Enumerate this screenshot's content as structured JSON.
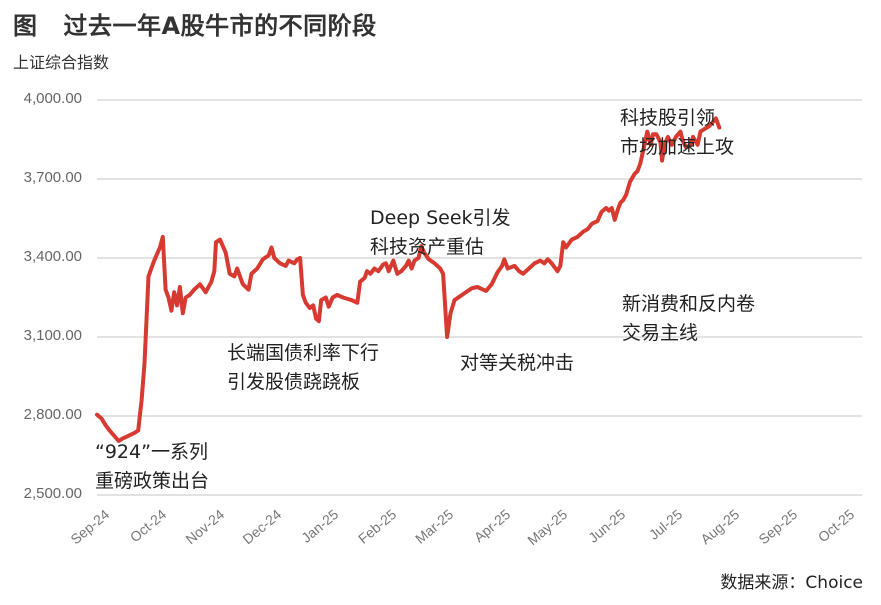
{
  "title": {
    "fig_label": "图",
    "text": "过去一年A股牛市的不同阶段"
  },
  "subtitle": "上证综合指数",
  "source": "数据来源：Choice",
  "colors": {
    "line": "#d63a30",
    "grid": "#d9d9d9",
    "axis_text": "#666666"
  },
  "annotations": [
    {
      "id": "policy",
      "lines": [
        "“924”一系列",
        "重磅政策出台"
      ]
    },
    {
      "id": "bond",
      "lines": [
        "长端国债利率下行",
        "引发股债跷跷板"
      ]
    },
    {
      "id": "deepseek",
      "lines": [
        "Deep Seek引发",
        "科技资产重估"
      ]
    },
    {
      "id": "tariff",
      "lines": [
        "对等关税冲击"
      ]
    },
    {
      "id": "consumption",
      "lines": [
        "新消费和反内卷",
        "交易主线"
      ]
    },
    {
      "id": "tech",
      "lines": [
        "科技股引领",
        "市场加速上攻"
      ]
    }
  ],
  "chart_data": {
    "type": "line",
    "title": "过去一年A股牛市的不同阶段",
    "ylabel": "上证综合指数",
    "xlabel": "",
    "ylim": [
      2500,
      4000
    ],
    "yticks": [
      "2,500.00",
      "2,800.00",
      "3,100.00",
      "3,400.00",
      "3,700.00",
      "4,000.00"
    ],
    "xticks": [
      "Sep-24",
      "Oct-24",
      "Nov-24",
      "Dec-24",
      "Jan-25",
      "Feb-25",
      "Mar-25",
      "Apr-25",
      "May-25",
      "Jun-25",
      "Jul-25",
      "Aug-25",
      "Sep-25",
      "Oct-25"
    ],
    "grid": true,
    "legend": "none",
    "series": [
      {
        "name": "上证综合指数",
        "points": [
          [
            0.0,
            2805
          ],
          [
            0.08,
            2790
          ],
          [
            0.15,
            2765
          ],
          [
            0.22,
            2745
          ],
          [
            0.3,
            2725
          ],
          [
            0.38,
            2705
          ],
          [
            0.45,
            2715
          ],
          [
            0.55,
            2725
          ],
          [
            0.65,
            2735
          ],
          [
            0.72,
            2745
          ],
          [
            0.78,
            2860
          ],
          [
            0.83,
            3000
          ],
          [
            0.9,
            3330
          ],
          [
            0.95,
            3360
          ],
          [
            1.0,
            3390
          ],
          [
            1.1,
            3440
          ],
          [
            1.15,
            3480
          ],
          [
            1.2,
            3280
          ],
          [
            1.25,
            3250
          ],
          [
            1.3,
            3200
          ],
          [
            1.35,
            3270
          ],
          [
            1.4,
            3220
          ],
          [
            1.45,
            3290
          ],
          [
            1.5,
            3190
          ],
          [
            1.55,
            3250
          ],
          [
            1.62,
            3260
          ],
          [
            1.7,
            3280
          ],
          [
            1.8,
            3300
          ],
          [
            1.9,
            3270
          ],
          [
            2.0,
            3310
          ],
          [
            2.05,
            3350
          ],
          [
            2.08,
            3460
          ],
          [
            2.15,
            3470
          ],
          [
            2.25,
            3420
          ],
          [
            2.32,
            3340
          ],
          [
            2.4,
            3330
          ],
          [
            2.45,
            3360
          ],
          [
            2.55,
            3300
          ],
          [
            2.65,
            3280
          ],
          [
            2.7,
            3340
          ],
          [
            2.8,
            3360
          ],
          [
            2.9,
            3395
          ],
          [
            3.0,
            3410
          ],
          [
            3.05,
            3440
          ],
          [
            3.1,
            3400
          ],
          [
            3.2,
            3380
          ],
          [
            3.3,
            3370
          ],
          [
            3.35,
            3390
          ],
          [
            3.45,
            3380
          ],
          [
            3.5,
            3395
          ],
          [
            3.55,
            3400
          ],
          [
            3.6,
            3260
          ],
          [
            3.65,
            3230
          ],
          [
            3.72,
            3210
          ],
          [
            3.78,
            3220
          ],
          [
            3.83,
            3170
          ],
          [
            3.88,
            3160
          ],
          [
            3.92,
            3240
          ],
          [
            4.0,
            3250
          ],
          [
            4.05,
            3215
          ],
          [
            4.12,
            3250
          ],
          [
            4.2,
            3260
          ],
          [
            4.3,
            3250
          ],
          [
            4.45,
            3240
          ],
          [
            4.55,
            3230
          ],
          [
            4.6,
            3310
          ],
          [
            4.68,
            3325
          ],
          [
            4.72,
            3350
          ],
          [
            4.78,
            3340
          ],
          [
            4.85,
            3360
          ],
          [
            4.92,
            3350
          ],
          [
            5.0,
            3375
          ],
          [
            5.05,
            3380
          ],
          [
            5.1,
            3350
          ],
          [
            5.18,
            3390
          ],
          [
            5.25,
            3340
          ],
          [
            5.32,
            3350
          ],
          [
            5.4,
            3370
          ],
          [
            5.45,
            3390
          ],
          [
            5.5,
            3360
          ],
          [
            5.55,
            3390
          ],
          [
            5.62,
            3400
          ],
          [
            5.67,
            3445
          ],
          [
            5.72,
            3420
          ],
          [
            5.8,
            3395
          ],
          [
            5.9,
            3380
          ],
          [
            6.0,
            3360
          ],
          [
            6.05,
            3340
          ],
          [
            6.12,
            3100
          ],
          [
            6.18,
            3190
          ],
          [
            6.25,
            3240
          ],
          [
            6.35,
            3255
          ],
          [
            6.45,
            3270
          ],
          [
            6.55,
            3285
          ],
          [
            6.65,
            3290
          ],
          [
            6.8,
            3275
          ],
          [
            6.9,
            3300
          ],
          [
            7.0,
            3345
          ],
          [
            7.08,
            3370
          ],
          [
            7.12,
            3395
          ],
          [
            7.18,
            3360
          ],
          [
            7.3,
            3370
          ],
          [
            7.38,
            3350
          ],
          [
            7.45,
            3340
          ],
          [
            7.55,
            3360
          ],
          [
            7.65,
            3380
          ],
          [
            7.75,
            3390
          ],
          [
            7.82,
            3380
          ],
          [
            7.88,
            3395
          ],
          [
            7.95,
            3380
          ],
          [
            8.05,
            3350
          ],
          [
            8.1,
            3370
          ],
          [
            8.15,
            3460
          ],
          [
            8.2,
            3440
          ],
          [
            8.3,
            3470
          ],
          [
            8.4,
            3480
          ],
          [
            8.5,
            3500
          ],
          [
            8.58,
            3510
          ],
          [
            8.65,
            3530
          ],
          [
            8.75,
            3540
          ],
          [
            8.82,
            3575
          ],
          [
            8.9,
            3590
          ],
          [
            8.95,
            3580
          ],
          [
            9.0,
            3590
          ],
          [
            9.05,
            3545
          ],
          [
            9.1,
            3580
          ],
          [
            9.15,
            3610
          ],
          [
            9.2,
            3620
          ],
          [
            9.25,
            3640
          ],
          [
            9.32,
            3690
          ],
          [
            9.4,
            3720
          ],
          [
            9.45,
            3730
          ],
          [
            9.5,
            3760
          ],
          [
            9.55,
            3810
          ],
          [
            9.62,
            3880
          ],
          [
            9.68,
            3830
          ],
          [
            9.72,
            3870
          ],
          [
            9.78,
            3870
          ],
          [
            9.85,
            3840
          ],
          [
            9.88,
            3770
          ],
          [
            9.92,
            3830
          ],
          [
            9.98,
            3860
          ],
          [
            10.05,
            3830
          ],
          [
            10.12,
            3860
          ],
          [
            10.2,
            3880
          ],
          [
            10.25,
            3840
          ],
          [
            10.3,
            3820
          ],
          [
            10.38,
            3830
          ],
          [
            10.42,
            3860
          ],
          [
            10.5,
            3830
          ],
          [
            10.55,
            3880
          ],
          [
            10.62,
            3890
          ],
          [
            10.7,
            3900
          ],
          [
            10.78,
            3920
          ],
          [
            10.82,
            3930
          ],
          [
            10.88,
            3895
          ]
        ]
      }
    ]
  }
}
